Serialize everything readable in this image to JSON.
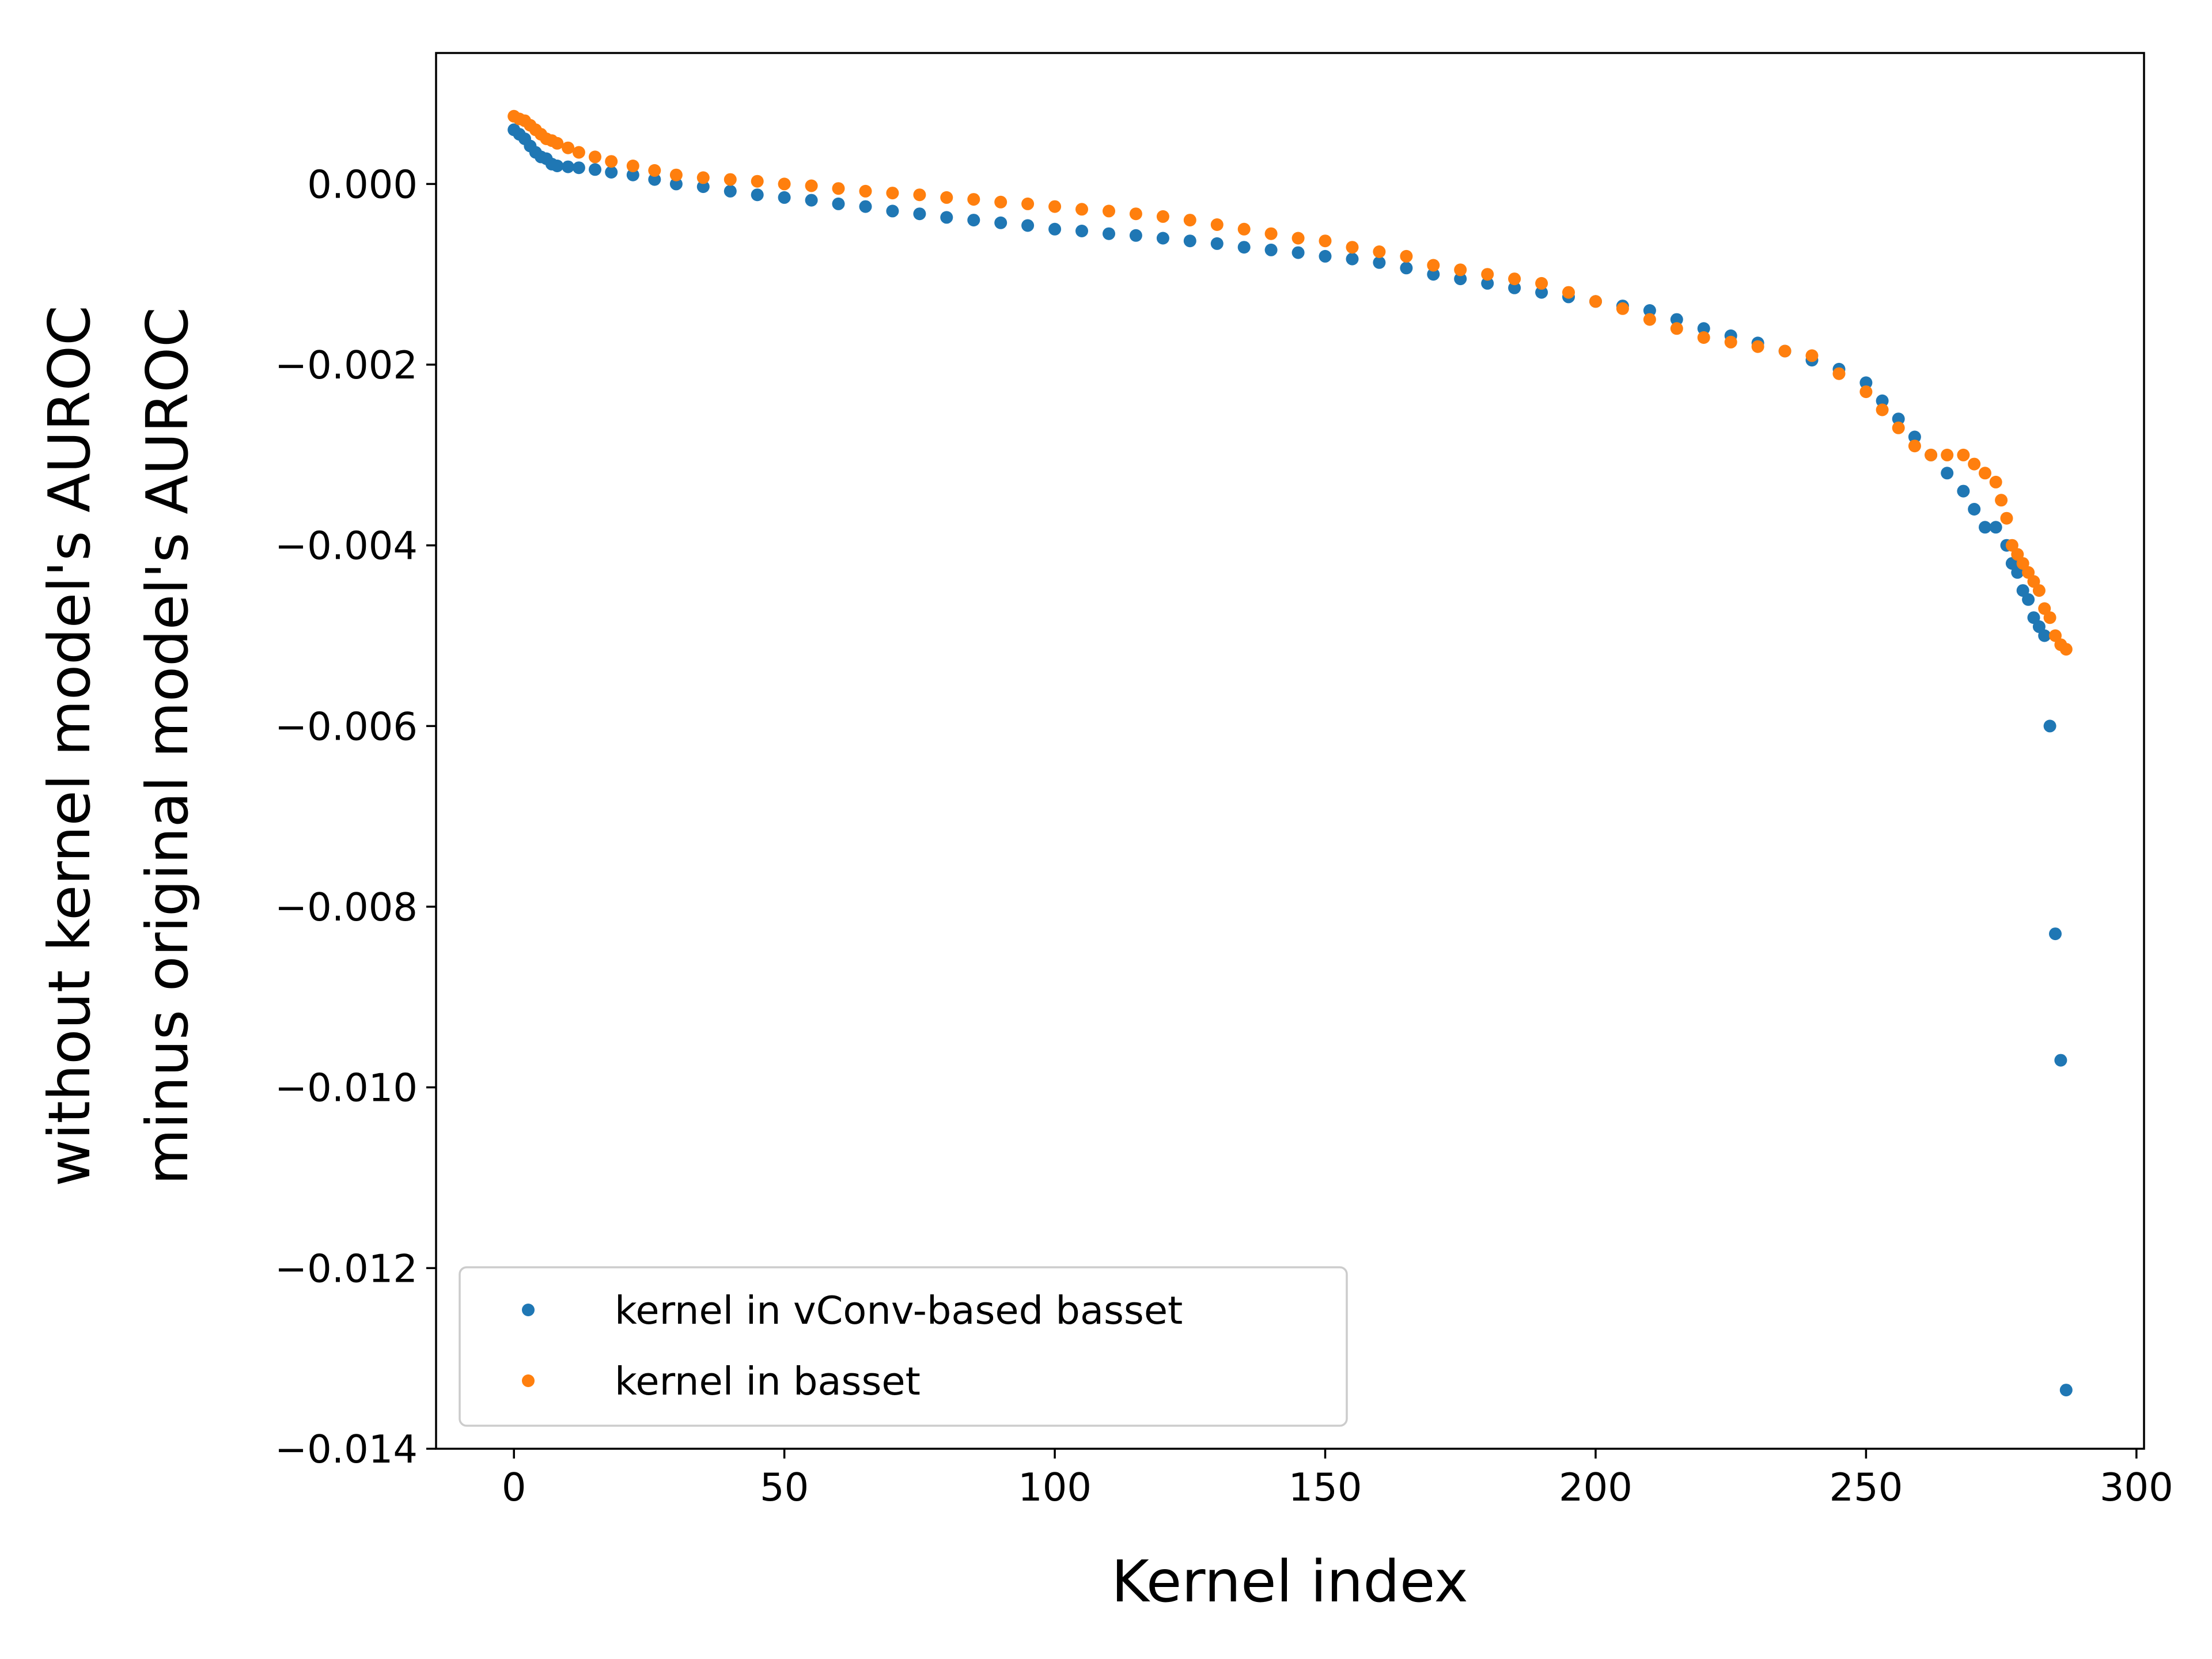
{
  "chart_data": {
    "type": "scatter",
    "title": "",
    "xlabel": "Kernel index",
    "ylabel_lines": [
      "without kernel model's AUROC",
      "minus original model's AUROC"
    ],
    "xlim": [
      -14.4,
      301.4
    ],
    "ylim": [
      -0.014,
      0.00145
    ],
    "x_ticks": [
      0,
      50,
      100,
      150,
      200,
      250,
      300
    ],
    "y_ticks": [
      0.0,
      -0.002,
      -0.004,
      -0.006,
      -0.008,
      -0.01,
      -0.012,
      -0.014
    ],
    "x_tick_labels": [
      "0",
      "50",
      "100",
      "150",
      "200",
      "250",
      "300"
    ],
    "y_tick_labels": [
      "0.000",
      "−0.002",
      "−0.004",
      "−0.006",
      "−0.008",
      "−0.010",
      "−0.012",
      "−0.014"
    ],
    "grid": false,
    "legend_position": "lower-left",
    "series": [
      {
        "name": "kernel in vConv-based basset",
        "color": "#1f77b4",
        "x": [
          0,
          1,
          2,
          3,
          4,
          5,
          6,
          7,
          8,
          10,
          12,
          15,
          18,
          22,
          26,
          30,
          35,
          40,
          45,
          50,
          55,
          60,
          65,
          70,
          75,
          80,
          85,
          90,
          95,
          100,
          105,
          110,
          115,
          120,
          125,
          130,
          135,
          140,
          145,
          150,
          155,
          160,
          165,
          170,
          175,
          180,
          185,
          190,
          195,
          200,
          205,
          210,
          215,
          220,
          225,
          230,
          235,
          240,
          245,
          250,
          253,
          256,
          259,
          262,
          265,
          268,
          270,
          272,
          274,
          276,
          277,
          278,
          279,
          280,
          281,
          282,
          283,
          284,
          285,
          286,
          287
        ],
        "y": [
          0.0006,
          0.00055,
          0.0005,
          0.00042,
          0.00035,
          0.0003,
          0.00028,
          0.00022,
          0.0002,
          0.00019,
          0.00018,
          0.00016,
          0.00013,
          0.0001,
          5e-05,
          0.0,
          -3e-05,
          -8e-05,
          -0.00012,
          -0.00015,
          -0.00018,
          -0.00022,
          -0.00025,
          -0.0003,
          -0.00033,
          -0.00037,
          -0.0004,
          -0.00043,
          -0.00046,
          -0.0005,
          -0.00052,
          -0.00055,
          -0.00057,
          -0.0006,
          -0.00063,
          -0.00066,
          -0.0007,
          -0.00073,
          -0.00076,
          -0.0008,
          -0.00083,
          -0.00087,
          -0.00093,
          -0.001,
          -0.00105,
          -0.0011,
          -0.00115,
          -0.0012,
          -0.00125,
          -0.0013,
          -0.00135,
          -0.0014,
          -0.0015,
          -0.0016,
          -0.00168,
          -0.00176,
          -0.00185,
          -0.00195,
          -0.00205,
          -0.0022,
          -0.0024,
          -0.0026,
          -0.0028,
          -0.003,
          -0.0032,
          -0.0034,
          -0.0036,
          -0.0038,
          -0.0038,
          -0.004,
          -0.0042,
          -0.0043,
          -0.0045,
          -0.0046,
          -0.0048,
          -0.0049,
          -0.005,
          -0.006,
          -0.0083,
          -0.0097,
          -0.01335
        ]
      },
      {
        "name": "kernel in basset",
        "color": "#ff7f0e",
        "x": [
          0,
          1,
          2,
          3,
          4,
          5,
          6,
          7,
          8,
          10,
          12,
          15,
          18,
          22,
          26,
          30,
          35,
          40,
          45,
          50,
          55,
          60,
          65,
          70,
          75,
          80,
          85,
          90,
          95,
          100,
          105,
          110,
          115,
          120,
          125,
          130,
          135,
          140,
          145,
          150,
          155,
          160,
          165,
          170,
          175,
          180,
          185,
          190,
          195,
          200,
          205,
          210,
          215,
          220,
          225,
          230,
          235,
          240,
          245,
          250,
          253,
          256,
          259,
          262,
          265,
          268,
          270,
          272,
          274,
          275,
          276,
          277,
          278,
          279,
          280,
          281,
          282,
          283,
          284,
          285,
          286,
          287
        ],
        "y": [
          0.00075,
          0.00072,
          0.0007,
          0.00065,
          0.0006,
          0.00055,
          0.0005,
          0.00048,
          0.00045,
          0.0004,
          0.00035,
          0.0003,
          0.00025,
          0.0002,
          0.00015,
          0.0001,
          7e-05,
          5e-05,
          3e-05,
          0.0,
          -2e-05,
          -5e-05,
          -8e-05,
          -0.0001,
          -0.00012,
          -0.00015,
          -0.00017,
          -0.0002,
          -0.00022,
          -0.00025,
          -0.00028,
          -0.0003,
          -0.00033,
          -0.00036,
          -0.0004,
          -0.00045,
          -0.0005,
          -0.00055,
          -0.0006,
          -0.00063,
          -0.0007,
          -0.00075,
          -0.0008,
          -0.0009,
          -0.00095,
          -0.001,
          -0.00105,
          -0.0011,
          -0.0012,
          -0.0013,
          -0.00138,
          -0.0015,
          -0.0016,
          -0.0017,
          -0.00175,
          -0.0018,
          -0.00185,
          -0.0019,
          -0.0021,
          -0.0023,
          -0.0025,
          -0.0027,
          -0.0029,
          -0.003,
          -0.003,
          -0.003,
          -0.0031,
          -0.0032,
          -0.0033,
          -0.0035,
          -0.0037,
          -0.004,
          -0.0041,
          -0.0042,
          -0.0043,
          -0.0044,
          -0.0045,
          -0.0047,
          -0.0048,
          -0.005,
          -0.0051,
          -0.00515
        ]
      }
    ]
  }
}
